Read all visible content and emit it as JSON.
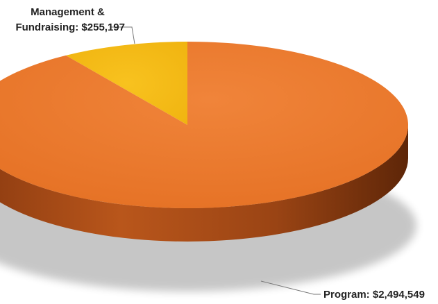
{
  "chart_data": {
    "type": "pie",
    "style": "3d",
    "slices": [
      {
        "label_lines": [
          "Management &",
          "Fundraising: $255,197"
        ],
        "value": 255197,
        "color": "#F5B814"
      },
      {
        "label_lines": [
          "Program: $2,494,549"
        ],
        "value": 2494549,
        "color": "#EC7A2C"
      }
    ],
    "legend": "none"
  }
}
